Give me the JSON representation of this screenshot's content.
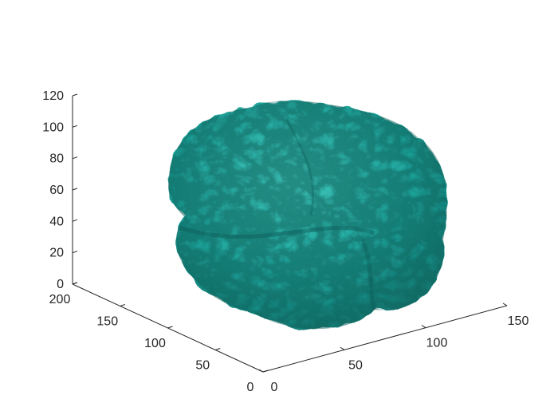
{
  "chart_data": {
    "type": "isosurface-3d",
    "title": "",
    "xlabel": "",
    "ylabel": "",
    "zlabel": "",
    "grid": false,
    "view": "3d",
    "surface_color": "#1fa39a",
    "axes": {
      "x": {
        "lim": [
          0,
          150
        ],
        "ticks": [
          0,
          50,
          100,
          150
        ],
        "labels": [
          "0",
          "50",
          "100",
          "150"
        ]
      },
      "y": {
        "lim": [
          0,
          200
        ],
        "ticks": [
          0,
          50,
          100,
          150,
          200
        ],
        "labels": [
          "0",
          "50",
          "100",
          "150",
          "200"
        ]
      },
      "z": {
        "lim": [
          0,
          120
        ],
        "ticks": [
          0,
          20,
          40,
          60,
          80,
          100,
          120
        ],
        "labels": [
          "0",
          "20",
          "40",
          "60",
          "80",
          "100",
          "120"
        ]
      }
    }
  }
}
